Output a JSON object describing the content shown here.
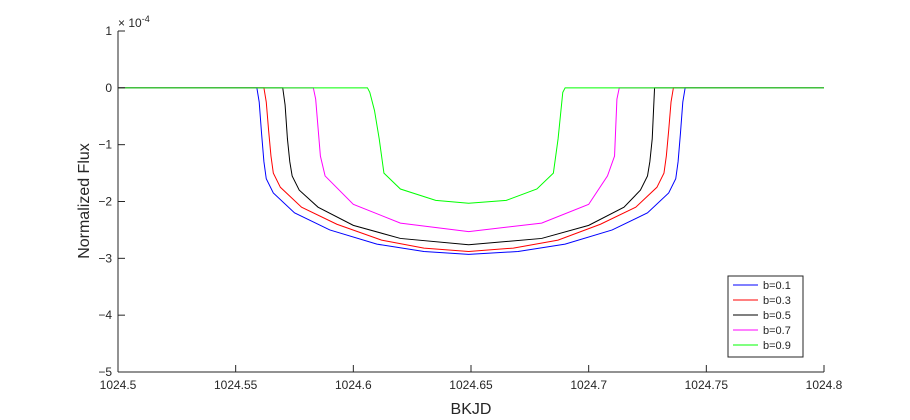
{
  "chart_data": {
    "type": "line",
    "title": "",
    "xlabel": "BKJD",
    "ylabel": "Normalized Flux",
    "xlim": [
      1024.5,
      1024.8
    ],
    "ylim": [
      -5,
      1
    ],
    "y_exponent_label": "× 10",
    "y_exponent_power": "-4",
    "x_ticks": [
      1024.5,
      1024.55,
      1024.6,
      1024.65,
      1024.7,
      1024.75,
      1024.8
    ],
    "x_tick_labels": [
      "1024.5",
      "1024.55",
      "1024.6",
      "1024.65",
      "1024.7",
      "1024.75",
      "1024.8"
    ],
    "y_ticks": [
      1,
      0,
      -1,
      -2,
      -3,
      -4,
      -5
    ],
    "y_tick_labels": [
      "1",
      "0",
      "−1",
      "−2",
      "−3",
      "−4",
      "−5"
    ],
    "grid": false,
    "legend_position": "bottom-right",
    "series": [
      {
        "name": "b=0.1",
        "color": "#0000ff",
        "x": [
          1024.5,
          1024.559,
          1024.56,
          1024.561,
          1024.562,
          1024.563,
          1024.566,
          1024.575,
          1024.59,
          1024.61,
          1024.63,
          1024.649,
          1024.67,
          1024.69,
          1024.71,
          1024.725,
          1024.734,
          1024.737,
          1024.738,
          1024.739,
          1024.74,
          1024.741,
          1024.8
        ],
        "y": [
          0,
          0,
          -0.25,
          -0.8,
          -1.3,
          -1.6,
          -1.85,
          -2.2,
          -2.5,
          -2.75,
          -2.88,
          -2.93,
          -2.88,
          -2.75,
          -2.5,
          -2.2,
          -1.85,
          -1.6,
          -1.3,
          -0.8,
          -0.25,
          0,
          0
        ]
      },
      {
        "name": "b=0.3",
        "color": "#ff0000",
        "x": [
          1024.5,
          1024.562,
          1024.563,
          1024.564,
          1024.565,
          1024.566,
          1024.569,
          1024.578,
          1024.593,
          1024.612,
          1024.63,
          1024.649,
          1024.668,
          1024.687,
          1024.705,
          1024.72,
          1024.729,
          1024.732,
          1024.733,
          1024.734,
          1024.735,
          1024.736,
          1024.8
        ],
        "y": [
          0,
          0,
          -0.25,
          -0.75,
          -1.2,
          -1.5,
          -1.75,
          -2.1,
          -2.4,
          -2.68,
          -2.82,
          -2.88,
          -2.82,
          -2.68,
          -2.4,
          -2.1,
          -1.75,
          -1.5,
          -1.2,
          -0.75,
          -0.25,
          0,
          0
        ]
      },
      {
        "name": "b=0.5",
        "color": "#000000",
        "x": [
          1024.5,
          1024.57,
          1024.571,
          1024.572,
          1024.573,
          1024.574,
          1024.577,
          1024.585,
          1024.6,
          1024.62,
          1024.649,
          1024.68,
          1024.7,
          1024.715,
          1024.722,
          1024.725,
          1024.726,
          1024.727,
          1024.728,
          1024.8
        ],
        "y": [
          0,
          0,
          -0.3,
          -0.9,
          -1.3,
          -1.55,
          -1.8,
          -2.1,
          -2.42,
          -2.65,
          -2.76,
          -2.65,
          -2.42,
          -2.1,
          -1.8,
          -1.55,
          -1.3,
          -0.9,
          0,
          0
        ]
      },
      {
        "name": "b=0.7",
        "color": "#ff00ff",
        "x": [
          1024.5,
          1024.583,
          1024.584,
          1024.585,
          1024.586,
          1024.588,
          1024.6,
          1024.62,
          1024.649,
          1024.68,
          1024.7,
          1024.708,
          1024.711,
          1024.712,
          1024.713,
          1024.8
        ],
        "y": [
          0,
          0,
          -0.2,
          -0.7,
          -1.2,
          -1.55,
          -2.05,
          -2.38,
          -2.53,
          -2.38,
          -2.05,
          -1.55,
          -1.2,
          -0.2,
          0,
          0
        ]
      },
      {
        "name": "b=0.9",
        "color": "#00ff00",
        "x": [
          1024.5,
          1024.606,
          1024.607,
          1024.609,
          1024.611,
          1024.613,
          1024.62,
          1024.635,
          1024.649,
          1024.665,
          1024.678,
          1024.685,
          1024.687,
          1024.689,
          1024.69,
          1024.8
        ],
        "y": [
          0,
          0,
          -0.08,
          -0.4,
          -0.9,
          -1.5,
          -1.78,
          -1.98,
          -2.03,
          -1.98,
          -1.78,
          -1.5,
          -0.9,
          -0.08,
          0,
          0
        ]
      }
    ]
  }
}
